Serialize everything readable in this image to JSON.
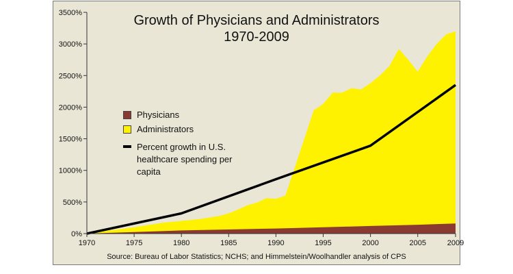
{
  "title": "Growth of Physicians and Administrators",
  "subtitle": "1970-2009",
  "source": "Source: Bureau of Labor Statistics; NCHS; and Himmelstein/Woolhandler analysis of CPS",
  "legend": {
    "physicians": "Physicians",
    "administrators": "Administrators",
    "spending": "Percent growth in U.S. healthcare spending per capita"
  },
  "colors": {
    "physicians": "#8b3a32",
    "administrators": "#fff200",
    "spending": "#000000",
    "background": "#e9e6d6"
  },
  "chart_data": {
    "type": "area",
    "xlim": [
      1970,
      2009
    ],
    "ylim": [
      0,
      3500
    ],
    "x_ticks": [
      "1970",
      "1975",
      "1980",
      "1985",
      "1990",
      "1995",
      "2000",
      "2005",
      "2009"
    ],
    "x_tick_values": [
      1970,
      1975,
      1980,
      1985,
      1990,
      1995,
      2000,
      2005,
      2009
    ],
    "y_ticks": [
      "0%",
      "500%",
      "1000%",
      "1500%",
      "2000%",
      "2500%",
      "3000%",
      "3500%"
    ],
    "y_tick_values": [
      0,
      500,
      1000,
      1500,
      2000,
      2500,
      3000,
      3500
    ],
    "grid": false,
    "legend_position": "center-left",
    "series": [
      {
        "name": "Administrators",
        "type": "area",
        "x": [
          1970,
          1972,
          1975,
          1978,
          1980,
          1982,
          1984,
          1985,
          1986,
          1987,
          1988,
          1989,
          1990,
          1991,
          1992,
          1993,
          1994,
          1995,
          1996,
          1997,
          1998,
          1999,
          2000,
          2001,
          2002,
          2003,
          2004,
          2005,
          2006,
          2007,
          2008,
          2009
        ],
        "y": [
          0,
          40,
          100,
          170,
          200,
          230,
          280,
          320,
          380,
          450,
          490,
          560,
          550,
          600,
          1050,
          1500,
          1950,
          2050,
          2230,
          2230,
          2300,
          2280,
          2380,
          2500,
          2650,
          2920,
          2750,
          2560,
          2800,
          3000,
          3150,
          3200
        ]
      },
      {
        "name": "Physicians",
        "type": "area",
        "x": [
          1970,
          1975,
          1980,
          1985,
          1990,
          1995,
          2000,
          2005,
          2009
        ],
        "y": [
          0,
          25,
          50,
          65,
          80,
          100,
          120,
          140,
          160
        ]
      },
      {
        "name": "Percent growth in U.S. healthcare spending per capita",
        "type": "line",
        "x": [
          1970,
          1980,
          1990,
          2000,
          2009
        ],
        "y": [
          0,
          320,
          860,
          1390,
          2350
        ]
      }
    ]
  }
}
